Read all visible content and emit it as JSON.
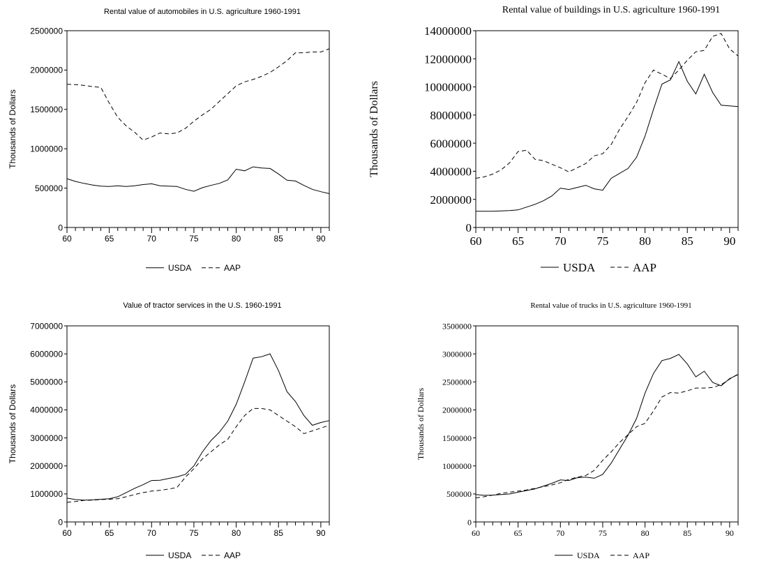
{
  "chart_data": [
    {
      "type": "line",
      "title": "Rental value of automobiles in U.S. agriculture 1960-1991",
      "ylabel": "Thousands of Dollars",
      "xlabel": "",
      "xlim": [
        60,
        91
      ],
      "ylim": [
        0,
        2500000
      ],
      "xticks": [
        "60",
        "65",
        "70",
        "75",
        "80",
        "85",
        "90"
      ],
      "yticks": [
        "0",
        "500000",
        "1000000",
        "1500000",
        "2000000",
        "2500000"
      ],
      "legend": "bottom-center",
      "x": [
        60,
        61,
        62,
        63,
        64,
        65,
        66,
        67,
        68,
        69,
        70,
        71,
        72,
        73,
        74,
        75,
        76,
        77,
        78,
        79,
        80,
        81,
        82,
        83,
        84,
        85,
        86,
        87,
        88,
        89,
        90,
        91
      ],
      "series": [
        {
          "name": "USDA",
          "dash": "solid",
          "values": [
            620000,
            585000,
            560000,
            540000,
            525000,
            520000,
            530000,
            520000,
            530000,
            545000,
            555000,
            530000,
            525000,
            520000,
            485000,
            460000,
            505000,
            535000,
            560000,
            605000,
            740000,
            720000,
            770000,
            755000,
            750000,
            680000,
            600000,
            590000,
            535000,
            485000,
            455000,
            430000
          ]
        },
        {
          "name": "AAP",
          "dash": "dashed",
          "values": [
            1820000,
            1815000,
            1805000,
            1790000,
            1780000,
            1580000,
            1400000,
            1290000,
            1210000,
            1110000,
            1150000,
            1200000,
            1190000,
            1200000,
            1260000,
            1350000,
            1430000,
            1500000,
            1600000,
            1700000,
            1800000,
            1850000,
            1880000,
            1920000,
            1970000,
            2040000,
            2120000,
            2220000,
            2220000,
            2230000,
            2230000,
            2270000
          ]
        }
      ]
    },
    {
      "type": "line",
      "title": "Rental value of buildings in U.S. agriculture 1960-1991",
      "ylabel": "Thousands of Dollars",
      "xlabel": "",
      "xlim": [
        60,
        91
      ],
      "ylim": [
        0,
        14000000
      ],
      "xticks": [
        "60",
        "65",
        "70",
        "75",
        "80",
        "85",
        "90"
      ],
      "yticks": [
        "0",
        "2000000",
        "4000000",
        "6000000",
        "8000000",
        "10000000",
        "12000000",
        "14000000"
      ],
      "legend": "bottom-center",
      "x": [
        60,
        61,
        62,
        63,
        64,
        65,
        66,
        67,
        68,
        69,
        70,
        71,
        72,
        73,
        74,
        75,
        76,
        77,
        78,
        79,
        80,
        81,
        82,
        83,
        84,
        85,
        86,
        87,
        88,
        89,
        90,
        91
      ],
      "series": [
        {
          "name": "USDA",
          "dash": "solid",
          "values": [
            1150000,
            1150000,
            1150000,
            1180000,
            1200000,
            1250000,
            1450000,
            1650000,
            1900000,
            2250000,
            2800000,
            2700000,
            2850000,
            3000000,
            2750000,
            2650000,
            3500000,
            3850000,
            4200000,
            5000000,
            6500000,
            8400000,
            10200000,
            10500000,
            11800000,
            10400000,
            9500000,
            10900000,
            9600000,
            8700000,
            8650000,
            8600000
          ]
        },
        {
          "name": "AAP",
          "dash": "dashed",
          "values": [
            3500000,
            3600000,
            3800000,
            4100000,
            4600000,
            5400000,
            5500000,
            4850000,
            4750000,
            4500000,
            4250000,
            3950000,
            4250000,
            4550000,
            5100000,
            5250000,
            5900000,
            7000000,
            7900000,
            8900000,
            10300000,
            11200000,
            10900000,
            10600000,
            11200000,
            11900000,
            12500000,
            12600000,
            13600000,
            13800000,
            12700000,
            12200000
          ]
        }
      ]
    },
    {
      "type": "line",
      "title": "Value of tractor services in the U.S. 1960-1991",
      "ylabel": "Thousands of Dollars",
      "xlabel": "",
      "xlim": [
        60,
        91
      ],
      "ylim": [
        0,
        7000000
      ],
      "xticks": [
        "60",
        "65",
        "70",
        "75",
        "80",
        "85",
        "90"
      ],
      "yticks": [
        "0",
        "1000000",
        "2000000",
        "3000000",
        "4000000",
        "5000000",
        "6000000",
        "7000000"
      ],
      "legend": "bottom-center",
      "x": [
        60,
        61,
        62,
        63,
        64,
        65,
        66,
        67,
        68,
        69,
        70,
        71,
        72,
        73,
        74,
        75,
        76,
        77,
        78,
        79,
        80,
        81,
        82,
        83,
        84,
        85,
        86,
        87,
        88,
        89,
        90,
        91
      ],
      "series": [
        {
          "name": "USDA",
          "dash": "solid",
          "values": [
            850000,
            800000,
            780000,
            790000,
            810000,
            830000,
            900000,
            1050000,
            1200000,
            1330000,
            1480000,
            1490000,
            1550000,
            1610000,
            1700000,
            2000000,
            2500000,
            2900000,
            3200000,
            3600000,
            4200000,
            5000000,
            5850000,
            5900000,
            6000000,
            5400000,
            4650000,
            4300000,
            3800000,
            3450000,
            3550000,
            3620000
          ]
        },
        {
          "name": "AAP",
          "dash": "dashed",
          "values": [
            700000,
            730000,
            770000,
            780000,
            800000,
            810000,
            830000,
            900000,
            980000,
            1050000,
            1100000,
            1130000,
            1170000,
            1230000,
            1600000,
            1900000,
            2250000,
            2500000,
            2750000,
            2950000,
            3400000,
            3800000,
            4050000,
            4050000,
            4000000,
            3800000,
            3600000,
            3400000,
            3150000,
            3250000,
            3350000,
            3450000
          ]
        }
      ]
    },
    {
      "type": "line",
      "title": "Rental value of trucks in U.S. agriculture 1960-1991",
      "ylabel": "Thousands of Dollars",
      "xlabel": "",
      "xlim": [
        60,
        91
      ],
      "ylim": [
        0,
        3500000
      ],
      "xticks": [
        "60",
        "65",
        "70",
        "75",
        "80",
        "85",
        "90"
      ],
      "yticks": [
        "0",
        "500000",
        "1000000",
        "1500000",
        "2000000",
        "2500000",
        "3000000",
        "3500000"
      ],
      "legend": "bottom-center",
      "x": [
        60,
        61,
        62,
        63,
        64,
        65,
        66,
        67,
        68,
        69,
        70,
        71,
        72,
        73,
        74,
        75,
        76,
        77,
        78,
        79,
        80,
        81,
        82,
        83,
        84,
        85,
        86,
        87,
        88,
        89,
        90,
        91
      ],
      "series": [
        {
          "name": "USDA",
          "dash": "solid",
          "values": [
            490000,
            475000,
            480000,
            490000,
            500000,
            530000,
            560000,
            590000,
            640000,
            690000,
            750000,
            740000,
            790000,
            800000,
            780000,
            850000,
            1050000,
            1300000,
            1550000,
            1850000,
            2300000,
            2650000,
            2880000,
            2920000,
            2990000,
            2820000,
            2590000,
            2690000,
            2490000,
            2430000,
            2560000,
            2630000
          ]
        },
        {
          "name": "AAP",
          "dash": "dashed",
          "values": [
            430000,
            450000,
            480000,
            510000,
            530000,
            550000,
            570000,
            600000,
            630000,
            660000,
            700000,
            760000,
            800000,
            830000,
            920000,
            1100000,
            1250000,
            1420000,
            1560000,
            1700000,
            1760000,
            1980000,
            2230000,
            2310000,
            2300000,
            2340000,
            2390000,
            2390000,
            2400000,
            2450000,
            2550000,
            2640000
          ]
        }
      ]
    }
  ]
}
